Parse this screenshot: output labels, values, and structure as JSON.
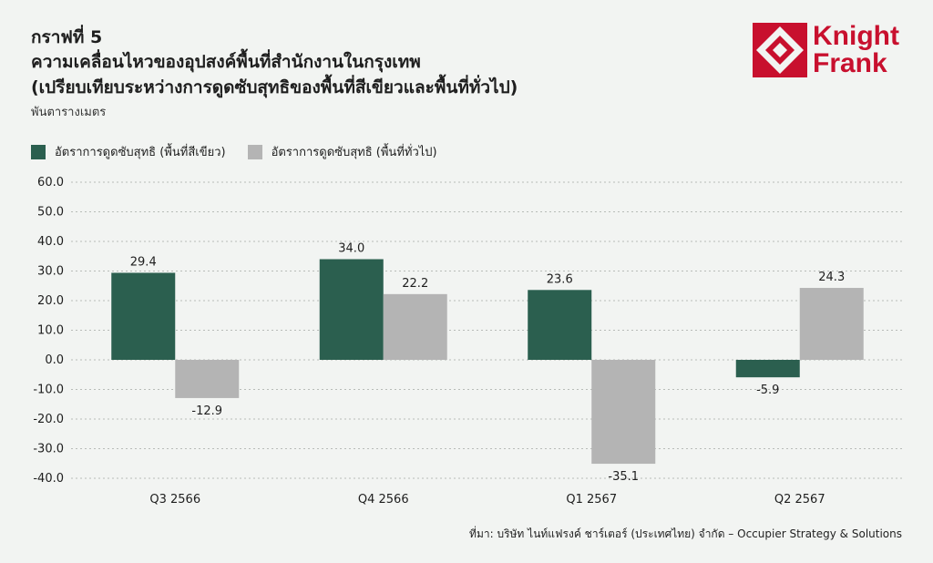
{
  "header": {
    "figure_label": "กราฟที่ 5",
    "title_line1": "ความเคลื่อนไหวของอุปสงค์พื้นที่สำนักงานในกรุงเทพ",
    "title_line2": "(เปรียบเทียบระหว่างการดูดซับสุทธิของพื้นที่สีเขียวและพื้นที่ทั่วไป)",
    "unit": "พันตารางเมตร"
  },
  "logo": {
    "line1": "Knight",
    "line2": "Frank",
    "color": "#c8102e"
  },
  "source": "ที่มา: บริษัท ไนท์แฟรงค์ ชาร์เตอร์ (ประเทศไทย) จำกัด – Occupier Strategy & Solutions",
  "chart_data": {
    "type": "bar",
    "categories": [
      "Q3 2566",
      "Q4 2566",
      "Q1 2567",
      "Q2 2567"
    ],
    "series": [
      {
        "name": "อัตราการดูดซับสุทธิ (พื้นที่สีเขียว)",
        "values": [
          29.4,
          34.0,
          23.6,
          -5.9
        ],
        "color": "#2b5f4f"
      },
      {
        "name": "อัตราการดูดซับสุทธิ (พื้นที่ทั่วไป)",
        "values": [
          -12.9,
          22.2,
          -35.1,
          24.3
        ],
        "color": "#b4b4b4"
      }
    ],
    "ylim": [
      -40,
      60
    ],
    "yticks": [
      "60.0",
      "50.0",
      "40.0",
      "30.0",
      "20.0",
      "10.0",
      "0.0",
      "-10.0",
      "-20.0",
      "-30.0",
      "-40.0"
    ],
    "data_labels": [
      [
        "29.4",
        "34.0",
        "23.6",
        "-5.9"
      ],
      [
        "-12.9",
        "22.2",
        "-35.1",
        "24.3"
      ]
    ],
    "grid": true,
    "legend_position": "top-left"
  }
}
